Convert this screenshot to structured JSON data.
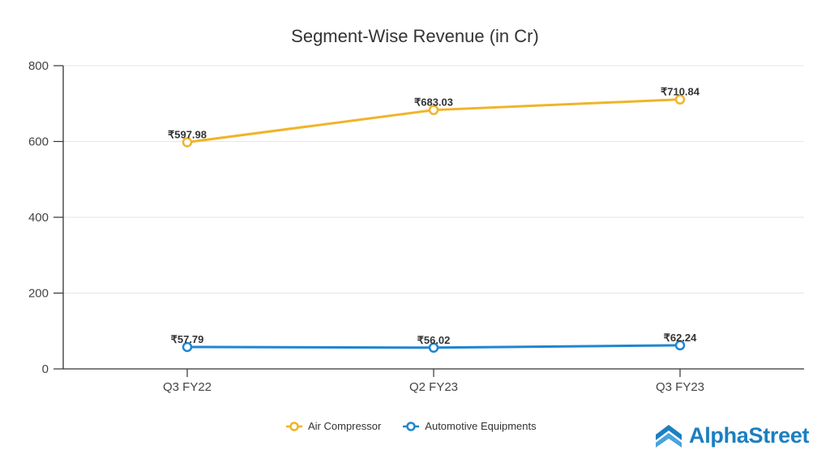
{
  "chart_data": {
    "type": "line",
    "title": "Segment-Wise Revenue (in Cr)",
    "xlabel": "",
    "ylabel": "",
    "categories": [
      "Q3 FY22",
      "Q2 FY23",
      "Q3 FY23"
    ],
    "ylim": [
      0,
      800
    ],
    "yticks": [
      0,
      200,
      400,
      600,
      800
    ],
    "ytick_labels": [
      "0",
      "200",
      "400",
      "600",
      "800"
    ],
    "grid": true,
    "legend_position": "bottom-center",
    "series": [
      {
        "name": "Air Compressor",
        "color": "#f0b429",
        "values": [
          597.98,
          683.03,
          710.84
        ],
        "labels": [
          "₹597.98",
          "₹683.03",
          "₹710.84"
        ]
      },
      {
        "name": "Automotive Equipments",
        "color": "#1f86d1",
        "values": [
          57.79,
          56.02,
          62.24
        ],
        "labels": [
          "₹57.79",
          "₹56.02",
          "₹62.24"
        ]
      }
    ]
  },
  "branding": {
    "logo_text": "AlphaStreet",
    "logo_color": "#1a7fc1"
  }
}
